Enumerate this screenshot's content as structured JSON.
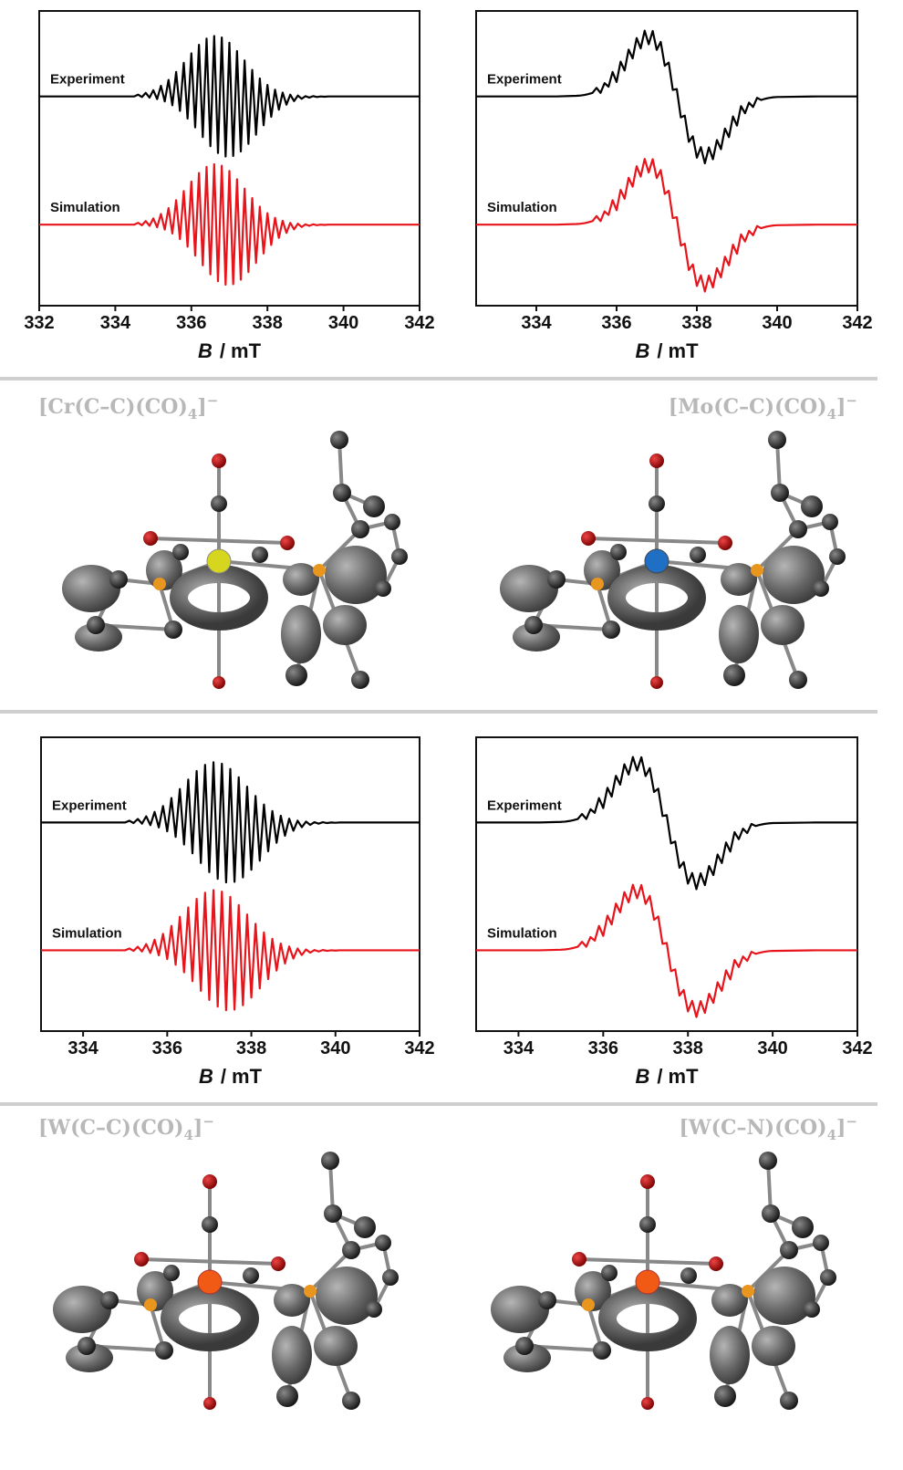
{
  "chart_data": [
    {
      "type": "line",
      "xlabel_parts": [
        "B",
        "/ mT"
      ],
      "xlim": [
        332,
        342
      ],
      "xticks": [
        332,
        334,
        336,
        338,
        340,
        342
      ],
      "ylim": [
        0,
        10
      ],
      "x": [
        332,
        333,
        334,
        334.5,
        334.6,
        334.7,
        334.8,
        334.9,
        335.0,
        335.1,
        335.2,
        335.3,
        335.4,
        335.5,
        335.6,
        335.7,
        335.8,
        335.9,
        336.0,
        336.1,
        336.2,
        336.3,
        336.4,
        336.5,
        336.6,
        336.7,
        336.8,
        336.9,
        337.0,
        337.1,
        337.2,
        337.3,
        337.4,
        337.5,
        337.6,
        337.7,
        337.8,
        337.9,
        338.0,
        338.1,
        338.2,
        338.3,
        338.4,
        338.5,
        338.6,
        338.7,
        338.8,
        338.9,
        339.0,
        339.1,
        339.2,
        339.3,
        339.4,
        339.5,
        339.6,
        340,
        341,
        342
      ],
      "series": [
        {
          "name": "Experiment",
          "color": "#000000",
          "values": [
            7.1,
            7.1,
            7.1,
            7.1,
            7.16,
            7.08,
            7.22,
            7.06,
            7.31,
            7.01,
            7.46,
            6.93,
            7.66,
            6.8,
            7.93,
            6.61,
            8.24,
            6.35,
            8.56,
            6.05,
            8.85,
            5.72,
            9.06,
            5.41,
            9.15,
            5.18,
            9.1,
            5.06,
            8.92,
            5.08,
            8.64,
            5.23,
            8.32,
            5.49,
            8.0,
            5.8,
            7.71,
            6.12,
            7.49,
            6.41,
            7.33,
            6.65,
            7.23,
            6.82,
            7.16,
            6.94,
            7.13,
            7.02,
            7.11,
            7.06,
            7.11,
            7.08,
            7.1,
            7.09,
            7.1,
            7.1,
            7.1,
            7.1
          ]
        },
        {
          "name": "Simulation",
          "color": "#e8141b",
          "values": [
            2.75,
            2.75,
            2.75,
            2.75,
            2.81,
            2.73,
            2.87,
            2.71,
            2.96,
            2.66,
            3.11,
            2.58,
            3.31,
            2.45,
            3.58,
            2.26,
            3.89,
            2.0,
            4.21,
            1.7,
            4.5,
            1.37,
            4.71,
            1.06,
            4.8,
            0.83,
            4.75,
            0.71,
            4.57,
            0.73,
            4.29,
            0.88,
            3.97,
            1.14,
            3.65,
            1.45,
            3.36,
            1.77,
            3.14,
            2.06,
            2.98,
            2.3,
            2.88,
            2.47,
            2.81,
            2.59,
            2.78,
            2.67,
            2.76,
            2.71,
            2.76,
            2.73,
            2.75,
            2.74,
            2.75,
            2.75,
            2.75,
            2.75
          ]
        }
      ]
    },
    {
      "type": "line",
      "xlabel_parts": [
        "B",
        "/ mT"
      ],
      "xlim": [
        332.5,
        342
      ],
      "xticks": [
        334,
        336,
        338,
        340,
        342
      ],
      "ylim": [
        0,
        10
      ],
      "x": [
        332.5,
        333.5,
        334.5,
        335.0,
        335.1,
        335.2,
        335.3,
        335.4,
        335.5,
        335.6,
        335.7,
        335.8,
        335.9,
        336.0,
        336.1,
        336.2,
        336.3,
        336.4,
        336.5,
        336.6,
        336.7,
        336.8,
        336.9,
        337.0,
        337.1,
        337.2,
        337.3,
        337.4,
        337.5,
        337.6,
        337.7,
        337.8,
        337.9,
        338.0,
        338.1,
        338.2,
        338.3,
        338.4,
        338.5,
        338.6,
        338.7,
        338.8,
        338.9,
        339.0,
        339.1,
        339.2,
        339.3,
        339.4,
        339.5,
        339.6,
        339.7,
        339.8,
        339.9,
        340.0,
        341,
        342
      ],
      "series": [
        {
          "name": "Experiment",
          "color": "#000000",
          "values": [
            7.1,
            7.1,
            7.1,
            7.12,
            7.13,
            7.15,
            7.18,
            7.22,
            7.39,
            7.22,
            7.55,
            7.43,
            7.93,
            7.59,
            8.28,
            7.98,
            8.69,
            8.39,
            9.08,
            8.73,
            9.33,
            8.87,
            9.32,
            8.68,
            8.95,
            8.14,
            8.25,
            7.32,
            7.35,
            6.39,
            6.45,
            5.56,
            5.75,
            5.02,
            5.38,
            4.83,
            5.37,
            4.97,
            5.62,
            5.31,
            6.01,
            5.72,
            6.42,
            6.11,
            6.77,
            6.53,
            6.89,
            6.74,
            7.05,
            6.98,
            7.02,
            7.05,
            7.07,
            7.08,
            7.1,
            7.1
          ]
        },
        {
          "name": "Simulation",
          "color": "#e8141b",
          "values": [
            2.75,
            2.75,
            2.75,
            2.77,
            2.78,
            2.8,
            2.83,
            2.87,
            3.04,
            2.87,
            3.2,
            3.08,
            3.58,
            3.24,
            3.93,
            3.63,
            4.34,
            4.04,
            4.73,
            4.38,
            4.98,
            4.52,
            4.97,
            4.33,
            4.6,
            3.79,
            3.9,
            2.97,
            3.0,
            2.04,
            2.1,
            1.21,
            1.4,
            0.67,
            1.03,
            0.48,
            1.02,
            0.62,
            1.27,
            0.96,
            1.66,
            1.37,
            2.07,
            1.76,
            2.42,
            2.18,
            2.54,
            2.39,
            2.7,
            2.63,
            2.67,
            2.7,
            2.72,
            2.73,
            2.75,
            2.75
          ]
        }
      ]
    },
    {
      "type": "line",
      "xlabel_parts": [
        "B",
        "/ mT"
      ],
      "xlim": [
        333,
        342
      ],
      "xticks": [
        334,
        336,
        338,
        340,
        342
      ],
      "ylim": [
        0,
        10
      ],
      "x": [
        333,
        334,
        335,
        335.1,
        335.2,
        335.3,
        335.4,
        335.5,
        335.6,
        335.7,
        335.8,
        335.9,
        336.0,
        336.1,
        336.2,
        336.3,
        336.4,
        336.5,
        336.6,
        336.7,
        336.8,
        336.9,
        337.0,
        337.1,
        337.2,
        337.3,
        337.4,
        337.5,
        337.6,
        337.7,
        337.8,
        337.9,
        338.0,
        338.1,
        338.2,
        338.3,
        338.4,
        338.5,
        338.6,
        338.7,
        338.8,
        338.9,
        339.0,
        339.1,
        339.2,
        339.3,
        339.4,
        339.5,
        339.6,
        339.7,
        339.8,
        339.9,
        340.0,
        340.1,
        341,
        342
      ],
      "series": [
        {
          "name": "Experiment",
          "color": "#000000",
          "values": [
            7.1,
            7.1,
            7.1,
            7.16,
            7.08,
            7.22,
            7.06,
            7.31,
            7.01,
            7.46,
            6.93,
            7.66,
            6.8,
            7.93,
            6.61,
            8.24,
            6.35,
            8.56,
            6.05,
            8.85,
            5.72,
            9.06,
            5.41,
            9.15,
            5.18,
            9.1,
            5.06,
            8.92,
            5.08,
            8.64,
            5.23,
            8.32,
            5.49,
            8.0,
            5.8,
            7.71,
            6.12,
            7.49,
            6.41,
            7.33,
            6.65,
            7.23,
            6.82,
            7.16,
            6.94,
            7.13,
            7.02,
            7.11,
            7.06,
            7.11,
            7.08,
            7.1,
            7.09,
            7.1,
            7.1,
            7.1
          ]
        },
        {
          "name": "Simulation",
          "color": "#e8141b",
          "values": [
            2.75,
            2.75,
            2.75,
            2.81,
            2.73,
            2.87,
            2.71,
            2.96,
            2.66,
            3.11,
            2.58,
            3.31,
            2.45,
            3.58,
            2.26,
            3.89,
            2.0,
            4.21,
            1.7,
            4.5,
            1.37,
            4.71,
            1.06,
            4.8,
            0.83,
            4.75,
            0.71,
            4.57,
            0.73,
            4.29,
            0.88,
            3.97,
            1.14,
            3.65,
            1.45,
            3.36,
            1.77,
            3.14,
            2.06,
            2.98,
            2.3,
            2.88,
            2.47,
            2.81,
            2.59,
            2.78,
            2.67,
            2.76,
            2.71,
            2.76,
            2.73,
            2.75,
            2.74,
            2.75,
            2.75,
            2.75
          ]
        }
      ]
    },
    {
      "type": "line",
      "xlabel_parts": [
        "B",
        "/ mT"
      ],
      "xlim": [
        333,
        342
      ],
      "xticks": [
        334,
        336,
        338,
        340,
        342
      ],
      "ylim": [
        0,
        10
      ],
      "x": [
        333,
        334,
        334.5,
        335.0,
        335.1,
        335.2,
        335.3,
        335.4,
        335.5,
        335.6,
        335.7,
        335.8,
        335.9,
        336.0,
        336.1,
        336.2,
        336.3,
        336.4,
        336.5,
        336.6,
        336.7,
        336.8,
        336.9,
        337.0,
        337.1,
        337.2,
        337.3,
        337.4,
        337.5,
        337.6,
        337.7,
        337.8,
        337.9,
        338.0,
        338.1,
        338.2,
        338.3,
        338.4,
        338.5,
        338.6,
        338.7,
        338.8,
        338.9,
        339.0,
        339.1,
        339.2,
        339.3,
        339.4,
        339.5,
        339.6,
        339.7,
        339.8,
        339.9,
        340.0,
        341,
        342
      ],
      "series": [
        {
          "name": "Experiment",
          "color": "#000000",
          "values": [
            7.1,
            7.1,
            7.1,
            7.12,
            7.13,
            7.15,
            7.18,
            7.22,
            7.39,
            7.22,
            7.55,
            7.43,
            7.93,
            7.59,
            8.28,
            7.98,
            8.69,
            8.39,
            9.08,
            8.73,
            9.33,
            8.87,
            9.32,
            8.68,
            8.95,
            8.14,
            8.25,
            7.32,
            7.35,
            6.39,
            6.45,
            5.56,
            5.75,
            5.02,
            5.38,
            4.83,
            5.37,
            4.97,
            5.62,
            5.31,
            6.01,
            5.72,
            6.42,
            6.11,
            6.77,
            6.53,
            6.89,
            6.74,
            7.05,
            6.98,
            7.02,
            7.05,
            7.07,
            7.08,
            7.1,
            7.1
          ]
        },
        {
          "name": "Simulation",
          "color": "#e8141b",
          "values": [
            2.75,
            2.75,
            2.75,
            2.77,
            2.78,
            2.8,
            2.83,
            2.87,
            3.04,
            2.87,
            3.2,
            3.08,
            3.58,
            3.24,
            3.93,
            3.63,
            4.34,
            4.04,
            4.73,
            4.38,
            4.98,
            4.52,
            4.97,
            4.33,
            4.6,
            3.79,
            3.9,
            2.97,
            3.0,
            2.04,
            2.1,
            1.21,
            1.4,
            0.67,
            1.03,
            0.48,
            1.02,
            0.62,
            1.27,
            0.96,
            1.66,
            1.37,
            2.07,
            1.76,
            2.42,
            2.18,
            2.54,
            2.39,
            2.7,
            2.63,
            2.67,
            2.7,
            2.72,
            2.73,
            2.75,
            2.75
          ]
        }
      ]
    }
  ],
  "structures": [
    {
      "main": "[Cr(C–C)(CO)",
      "subscript": "4",
      "close": "]",
      "superscript": "−"
    },
    {
      "main": "[Mo(C–C)(CO)",
      "subscript": "4",
      "close": "]",
      "superscript": "−"
    },
    {
      "main": "[W(C–C)(CO)",
      "subscript": "4",
      "close": "]",
      "superscript": "−"
    },
    {
      "main": "[W(C–N)(CO)",
      "subscript": "4",
      "close": "]",
      "superscript": "−"
    }
  ]
}
